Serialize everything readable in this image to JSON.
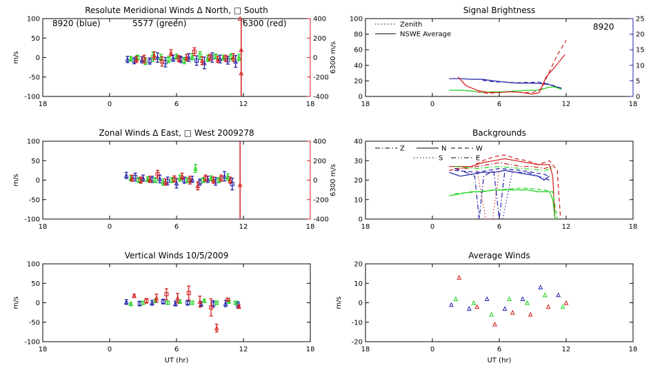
{
  "colors": {
    "blue": "#1f1fa8",
    "green": "#19d219",
    "red": "#d21919",
    "axis": "#000000"
  },
  "time_ticks": [
    "18",
    "0",
    "6",
    "12",
    "18"
  ],
  "chart_data": [
    {
      "id": "meridional",
      "type": "scatter",
      "title": "Resolute Meridional Winds Δ North, □ South",
      "ylabel": "m/s",
      "y2label": "6300 m/s",
      "xlim": [
        -6,
        18
      ],
      "xticks": [
        -6,
        0,
        6,
        12,
        18
      ],
      "ylim": [
        -100,
        100
      ],
      "yticks": [
        "100",
        "50",
        "0",
        "-50",
        "-100"
      ],
      "y2lim": [
        -400,
        400
      ],
      "y2ticks": [
        "400",
        "200",
        "0",
        "-200",
        "-400"
      ],
      "legend": [
        {
          "text": "8920 (blue)",
          "color": "blue"
        },
        {
          "text": "5577 (green)",
          "color": "green"
        },
        {
          "text": "6300 (red)",
          "color": "red"
        }
      ],
      "series": [
        {
          "color": "blue",
          "x": [
            1.6,
            2.2,
            2.9,
            3.6,
            4.3,
            5.0,
            5.7,
            6.4,
            7.1,
            7.8,
            8.5,
            9.2,
            9.9,
            10.6,
            11.3
          ],
          "y": [
            -5,
            -8,
            -6,
            -9,
            0,
            -12,
            -2,
            -5,
            0,
            -8,
            -14,
            0,
            -4,
            -7,
            -10
          ],
          "err": [
            8,
            8,
            8,
            8,
            12,
            12,
            8,
            8,
            10,
            12,
            15,
            12,
            10,
            10,
            15
          ]
        },
        {
          "color": "green",
          "x": [
            1.9,
            2.5,
            3.2,
            3.9,
            4.6,
            5.3,
            6.0,
            6.7,
            7.4,
            8.1,
            8.8,
            9.5,
            10.2,
            10.9,
            11.6
          ],
          "y": [
            -3,
            0,
            -10,
            2,
            0,
            -5,
            3,
            -8,
            2,
            5,
            -2,
            3,
            0,
            2,
            0
          ],
          "err": [
            6,
            6,
            8,
            12,
            8,
            8,
            6,
            8,
            8,
            10,
            8,
            6,
            6,
            8,
            8
          ]
        },
        {
          "color": "red",
          "x": [
            2.4,
            3.1,
            4.0,
            4.7,
            5.5,
            6.2,
            6.9,
            7.6,
            8.3,
            9.0,
            9.7,
            10.4,
            11.1
          ],
          "y": [
            -5,
            -4,
            5,
            -10,
            12,
            -3,
            0,
            15,
            -8,
            0,
            -5,
            -2,
            0
          ],
          "err": [
            8,
            10,
            10,
            12,
            8,
            8,
            8,
            10,
            10,
            8,
            8,
            8,
            10
          ]
        }
      ],
      "red_line_x": 11.8,
      "red_spike": [
        {
          "x": 11.7,
          "y": 100
        },
        {
          "x": 11.8,
          "y": 20
        },
        {
          "x": 11.8,
          "y": -40
        }
      ]
    },
    {
      "id": "brightness",
      "type": "line",
      "title": "Signal Brightness",
      "xlim": [
        -6,
        18
      ],
      "xticks": [
        -6,
        0,
        6,
        12,
        18
      ],
      "ylim": [
        0,
        100
      ],
      "yticks": [
        "100",
        "80",
        "60",
        "40",
        "20",
        "0"
      ],
      "y2lim": [
        0,
        25
      ],
      "y2ticks": [
        "25",
        "20",
        "15",
        "10",
        "5",
        "0"
      ],
      "legend": [
        {
          "text": "Zenith",
          "style": "dotted"
        },
        {
          "text": "NSWE Average",
          "style": "solid"
        }
      ],
      "annotation": "8920",
      "series": [
        {
          "color": "blue",
          "style": "solid",
          "axis": "right",
          "x": [
            1.5,
            2.5,
            3.5,
            4.5,
            5.5,
            6.5,
            7.5,
            8.5,
            9.5,
            10.5,
            11.0,
            11.6
          ],
          "y": [
            5.7,
            5.7,
            5.5,
            5.5,
            5.0,
            4.6,
            4.3,
            4.3,
            4.2,
            3.8,
            3.2,
            2.6
          ]
        },
        {
          "color": "blue",
          "style": "dashed",
          "axis": "right",
          "x": [
            4.5,
            5.5,
            6.5,
            7.5,
            8.5,
            9.5,
            10.5,
            11.6
          ],
          "y": [
            5.2,
            4.7,
            4.6,
            4.4,
            4.5,
            4.6,
            3.9,
            2.6
          ]
        },
        {
          "color": "green",
          "style": "solid",
          "axis": "left",
          "x": [
            1.5,
            2.5,
            3.5,
            4.5,
            5.5,
            6.5,
            7.5,
            8.5,
            9.5,
            10.5,
            11.0,
            11.6
          ],
          "y": [
            8,
            8,
            7,
            5,
            6,
            6,
            7,
            8,
            8,
            12,
            12,
            9
          ]
        },
        {
          "color": "red",
          "style": "solid",
          "axis": "left",
          "x": [
            2.3,
            3.0,
            4.0,
            5.0,
            6.0,
            7.0,
            8.0,
            9.0,
            9.6,
            10.2,
            11.0,
            11.9
          ],
          "y": [
            25,
            14,
            8,
            5,
            5,
            6,
            5,
            3,
            5,
            25,
            38,
            54
          ]
        },
        {
          "color": "red",
          "style": "dashed",
          "axis": "left",
          "x": [
            4.0,
            5.0,
            6.0,
            7.0,
            8.0,
            9.0,
            9.8,
            10.5,
            11.2,
            12.0
          ],
          "y": [
            6,
            4,
            5,
            6,
            5,
            5,
            10,
            32,
            53,
            72
          ]
        }
      ]
    },
    {
      "id": "zonal",
      "type": "scatter",
      "title": "Zonal Winds Δ East, □ West 2009278",
      "ylabel": "m/s",
      "y2label": "6300 m/s",
      "xlim": [
        -6,
        18
      ],
      "xticks": [
        -6,
        0,
        6,
        12,
        18
      ],
      "ylim": [
        -100,
        100
      ],
      "yticks": [
        "100",
        "50",
        "0",
        "-50",
        "-100"
      ],
      "y2lim": [
        -400,
        400
      ],
      "y2ticks": [
        "400",
        "200",
        "0",
        "-200",
        "-400"
      ],
      "series": [
        {
          "color": "blue",
          "x": [
            1.5,
            2.3,
            3.0,
            3.8,
            4.5,
            5.2,
            6.0,
            6.7,
            7.4,
            8.1,
            8.8,
            9.5,
            10.3,
            11.0
          ],
          "y": [
            12,
            8,
            5,
            2,
            3,
            -2,
            -8,
            0,
            2,
            -5,
            2,
            -3,
            10,
            -10
          ],
          "err": [
            8,
            10,
            8,
            8,
            10,
            10,
            12,
            8,
            8,
            8,
            8,
            10,
            12,
            15
          ]
        },
        {
          "color": "green",
          "x": [
            1.9,
            2.6,
            3.4,
            4.1,
            4.8,
            5.6,
            6.3,
            7.0,
            7.7,
            8.4,
            9.1,
            9.8,
            10.6
          ],
          "y": [
            5,
            0,
            2,
            0,
            -5,
            0,
            5,
            0,
            30,
            0,
            5,
            0,
            8
          ],
          "err": [
            6,
            6,
            6,
            6,
            8,
            6,
            8,
            6,
            10,
            6,
            6,
            6,
            8
          ]
        },
        {
          "color": "red",
          "x": [
            2.0,
            2.8,
            3.6,
            4.3,
            5.0,
            5.8,
            6.5,
            7.2,
            7.9,
            8.6,
            9.3,
            10.0,
            10.8
          ],
          "y": [
            5,
            0,
            2,
            15,
            -5,
            3,
            10,
            0,
            -15,
            5,
            0,
            5,
            0
          ],
          "err": [
            8,
            8,
            8,
            10,
            8,
            8,
            8,
            10,
            10,
            8,
            8,
            8,
            8
          ]
        }
      ],
      "red_line_x": 11.7,
      "red_spike": [
        {
          "x": 11.7,
          "y": -12
        }
      ]
    },
    {
      "id": "backgrounds",
      "type": "line",
      "title": "Backgrounds",
      "xlim": [
        -6,
        18
      ],
      "xticks": [
        -6,
        0,
        6,
        12,
        18
      ],
      "ylim": [
        0,
        40
      ],
      "yticks": [
        "40",
        "30",
        "20",
        "10",
        "0"
      ],
      "legend": [
        {
          "text": "Z",
          "style": "dashdot"
        },
        {
          "text": "N",
          "style": "solid"
        },
        {
          "text": "W",
          "style": "dashed"
        },
        {
          "text": "S",
          "style": "dotted"
        },
        {
          "text": "E",
          "style": "dashdotdot"
        }
      ],
      "series": [
        {
          "color": "red",
          "style": "solid",
          "x": [
            1.5,
            2.5,
            3.5,
            4.5,
            5.5,
            6.5,
            7.5,
            8.5,
            9.5,
            10.5,
            10.8,
            11.0
          ],
          "y": [
            27,
            27,
            27,
            29,
            30,
            31,
            30,
            29,
            28,
            28,
            22,
            0
          ]
        },
        {
          "color": "red",
          "style": "dashed",
          "x": [
            1.5,
            2.5,
            3.5,
            4.5,
            5.5,
            6.5,
            7.5,
            8.5,
            9.5,
            10.5,
            11.2,
            11.5
          ],
          "y": [
            25,
            26,
            27,
            30,
            32,
            33,
            31,
            30,
            28,
            30,
            25,
            0
          ]
        },
        {
          "color": "red",
          "style": "dashdot",
          "x": [
            2.0,
            3.0,
            4.0,
            5.0,
            6.0,
            7.0,
            8.0,
            9.0,
            10.0,
            10.7
          ],
          "y": [
            26,
            26,
            27,
            28,
            29,
            28,
            27,
            27,
            26,
            27
          ]
        },
        {
          "color": "red",
          "style": "dotted",
          "x": [
            4.0,
            4.8,
            5.4,
            6.0
          ],
          "y": [
            25,
            0,
            0,
            25
          ]
        },
        {
          "color": "blue",
          "style": "solid",
          "x": [
            1.5,
            2.5,
            3.5,
            4.5,
            5.5,
            6.5,
            7.5,
            8.5,
            9.5,
            10.0,
            10.5
          ],
          "y": [
            24,
            22,
            23,
            24,
            24,
            25,
            24,
            23,
            22,
            20,
            22
          ]
        },
        {
          "color": "blue",
          "style": "dashdot",
          "x": [
            2.0,
            3.0,
            3.8,
            4.2,
            4.6,
            5.5,
            6.0,
            6.5,
            7.5,
            8.5,
            9.5,
            10.5
          ],
          "y": [
            26,
            24,
            22,
            0,
            22,
            25,
            0,
            25,
            24,
            24,
            22,
            20
          ]
        },
        {
          "color": "blue",
          "style": "dashed",
          "x": [
            2.0,
            4.0,
            6.0,
            8.0,
            10.0,
            10.5
          ],
          "y": [
            25,
            24,
            26,
            25,
            23,
            22
          ]
        },
        {
          "color": "blue",
          "style": "dotted",
          "x": [
            6.3,
            7.2
          ],
          "y": [
            0,
            25
          ]
        },
        {
          "color": "green",
          "style": "solid",
          "x": [
            1.5,
            2.5,
            3.5,
            4.5,
            5.5,
            6.5,
            7.5,
            8.5,
            9.5,
            10.5,
            10.8,
            11.0
          ],
          "y": [
            12,
            13,
            14,
            14,
            15,
            15,
            15,
            15,
            14,
            14,
            10,
            0
          ]
        },
        {
          "color": "green",
          "style": "dashed",
          "x": [
            2.0,
            4.0,
            6.0,
            8.0,
            10.0,
            10.8,
            11.2
          ],
          "y": [
            13,
            14,
            15,
            16,
            15,
            14,
            0
          ]
        },
        {
          "color": "green",
          "style": "dashdot",
          "x": [
            2.0,
            4.0,
            6.0,
            8.0,
            10.0,
            10.8
          ],
          "y": [
            27,
            26,
            27,
            26,
            25,
            26
          ]
        }
      ]
    },
    {
      "id": "vertical",
      "type": "scatter",
      "title": "Vertical Winds 10/5/2009",
      "ylabel": "m/s",
      "xlabel": "UT (hr)",
      "xlim": [
        -6,
        18
      ],
      "xticks": [
        -6,
        0,
        6,
        12,
        18
      ],
      "ylim": [
        -100,
        100
      ],
      "yticks": [
        "100",
        "50",
        "0",
        "-50",
        "-100"
      ],
      "series": [
        {
          "color": "blue",
          "x": [
            1.5,
            2.7,
            3.8,
            4.8,
            5.9,
            7.0,
            8.2,
            9.3,
            10.4,
            11.5
          ],
          "y": [
            2,
            -2,
            0,
            3,
            -2,
            0,
            -3,
            -3,
            -2,
            -5
          ],
          "err": [
            6,
            6,
            6,
            6,
            6,
            6,
            6,
            8,
            8,
            8
          ]
        },
        {
          "color": "green",
          "x": [
            1.9,
            3.0,
            4.1,
            5.2,
            6.3,
            7.4,
            8.5,
            9.6,
            10.7,
            11.3
          ],
          "y": [
            -3,
            0,
            5,
            0,
            3,
            0,
            5,
            0,
            3,
            0
          ],
          "err": [
            4,
            4,
            4,
            4,
            4,
            4,
            4,
            4,
            4,
            4
          ]
        },
        {
          "color": "red",
          "x": [
            2.2,
            3.3,
            4.2,
            5.1,
            6.1,
            7.1,
            8.1,
            9.1,
            9.6,
            10.6,
            11.6
          ],
          "y": [
            18,
            5,
            12,
            22,
            12,
            25,
            3,
            -12,
            -65,
            8,
            -10
          ],
          "err": [
            4,
            6,
            10,
            14,
            12,
            18,
            14,
            22,
            10,
            4,
            4
          ]
        }
      ]
    },
    {
      "id": "average",
      "type": "scatter",
      "title": "Average Winds",
      "ylabel": "m/s",
      "xlabel": "UT (hr)",
      "xlim": [
        -6,
        18
      ],
      "xticks": [
        -6,
        0,
        6,
        12,
        18
      ],
      "ylim": [
        -20,
        20
      ],
      "yticks": [
        "20",
        "10",
        "0",
        "-10",
        "-20"
      ],
      "series": [
        {
          "color": "blue",
          "x": [
            1.7,
            3.3,
            4.9,
            6.5,
            8.1,
            9.7,
            11.3
          ],
          "y": [
            -1,
            -3,
            2,
            -3,
            2,
            8,
            4
          ]
        },
        {
          "color": "green",
          "x": [
            2.1,
            3.7,
            5.3,
            6.9,
            8.5,
            10.1,
            11.7
          ],
          "y": [
            2,
            0,
            -6,
            2,
            0,
            4,
            -2
          ]
        },
        {
          "color": "red",
          "x": [
            2.4,
            4.0,
            5.6,
            7.2,
            8.8,
            10.4,
            12.0
          ],
          "y": [
            13,
            -2,
            -11,
            -5,
            -6,
            -2,
            0
          ]
        }
      ]
    }
  ]
}
